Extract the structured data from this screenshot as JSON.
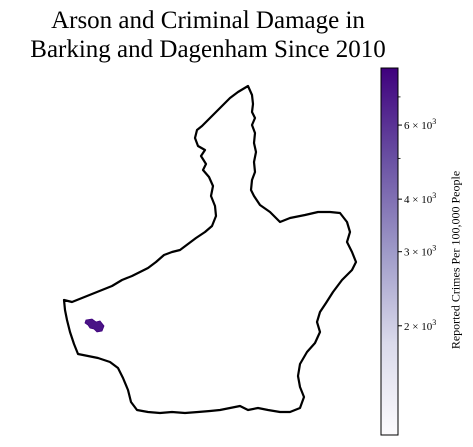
{
  "title": {
    "line1": "Arson and Criminal Damage in",
    "line2": "Barking and Dagenham Since 2010"
  },
  "map": {
    "boundary_color": "#000000",
    "boundary_fill": "#ffffff",
    "highlight_color": "#4a1486"
  },
  "colorbar": {
    "label": "Reported Crimes Per 100,000 People",
    "scale": "log",
    "range": [
      1100,
      8200
    ],
    "colormap_low": "#fcfbfd",
    "colormap_high": "#3f007d",
    "ticks": [
      {
        "value": 2000,
        "base": "2 × 10",
        "exp": "3"
      },
      {
        "value": 3000,
        "base": "3 × 10",
        "exp": "3"
      },
      {
        "value": 4000,
        "base": "4 × 10",
        "exp": "3"
      },
      {
        "value": 6000,
        "base": "6 × 10",
        "exp": "3"
      }
    ],
    "minor_ticks": [
      5000,
      7000
    ]
  }
}
